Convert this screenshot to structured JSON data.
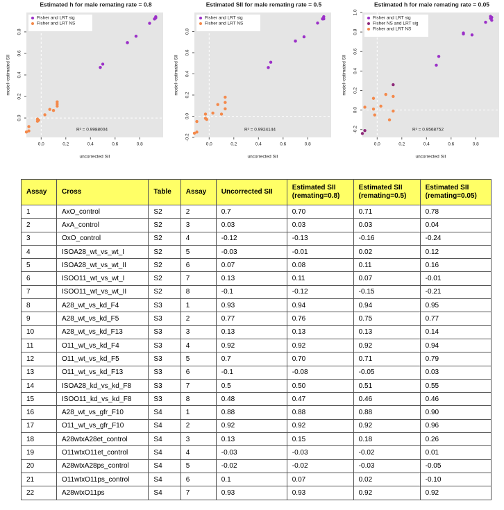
{
  "chart_data": [
    {
      "type": "scatter",
      "title": "Estimated h for male remating rate = 0.8",
      "xlabel": "uncorrected SII",
      "ylabel": "model–estimated SII",
      "annotation": "R² = 0.9988004",
      "xlim": [
        -0.12,
        0.99
      ],
      "ylim": [
        -0.18,
        0.98
      ],
      "xticks": [
        {
          "value": 0,
          "label": "0.0"
        },
        0.2,
        0.4,
        0.6,
        0.8
      ],
      "yticks": [
        {
          "value": 0,
          "label": "0.0"
        },
        0.2,
        0.4,
        0.6,
        0.8
      ],
      "series": [
        {
          "name": "Fisher and LRT sig",
          "color": "#9b30c8",
          "x": [
            0.7,
            0.93,
            0.77,
            0.92,
            0.7,
            0.5,
            0.48,
            0.88,
            0.92,
            0.93
          ],
          "values": [
            0.7,
            0.94,
            0.76,
            0.92,
            0.7,
            0.5,
            0.47,
            0.88,
            0.92,
            0.93
          ]
        },
        {
          "name": "Fisher and LRT NS",
          "color": "#f4894b",
          "x": [
            0.03,
            -0.12,
            -0.03,
            0.07,
            0.13,
            -0.1,
            0.13,
            -0.1,
            0.13,
            -0.03,
            -0.02,
            0.1
          ],
          "values": [
            0.03,
            -0.13,
            -0.01,
            0.08,
            0.11,
            -0.12,
            0.13,
            -0.08,
            0.15,
            -0.03,
            -0.02,
            0.07
          ]
        }
      ]
    },
    {
      "type": "scatter",
      "title": "Estimated SII for male remating rate = 0.5",
      "xlabel": "uncorrected SII",
      "ylabel": "model–estimated SII",
      "annotation": "R² = 0.9924144",
      "xlim": [
        -0.12,
        0.99
      ],
      "ylim": [
        -0.2,
        0.98
      ],
      "xticks": [
        {
          "value": 0,
          "label": "0.0"
        },
        0.2,
        0.4,
        0.6,
        0.8
      ],
      "yticks": [
        -0.2,
        {
          "value": 0,
          "label": "0.0"
        },
        0.2,
        0.4,
        0.6,
        0.8
      ],
      "series": [
        {
          "name": "Fisher and LRT sig",
          "color": "#9b30c8",
          "x": [
            0.7,
            0.93,
            0.77,
            0.92,
            0.7,
            0.5,
            0.48,
            0.88,
            0.92,
            0.93
          ],
          "values": [
            0.71,
            0.94,
            0.75,
            0.92,
            0.71,
            0.51,
            0.46,
            0.88,
            0.92,
            0.92
          ]
        },
        {
          "name": "Fisher and LRT NS",
          "color": "#f4894b",
          "x": [
            0.03,
            -0.12,
            -0.03,
            0.07,
            0.13,
            -0.1,
            0.13,
            -0.1,
            0.13,
            -0.03,
            -0.02,
            0.1
          ],
          "values": [
            0.03,
            -0.16,
            0.02,
            0.11,
            0.07,
            -0.15,
            0.13,
            -0.05,
            0.18,
            -0.02,
            -0.03,
            0.02
          ]
        }
      ]
    },
    {
      "type": "scatter",
      "title": "Estimated h for male remating rate = 0.05",
      "xlabel": "uncorrected SII",
      "ylabel": "model–estimated SII",
      "annotation": "R² = 0.9568752",
      "xlim": [
        -0.12,
        0.99
      ],
      "ylim": [
        -0.28,
        1.0
      ],
      "xticks": [
        {
          "value": 0,
          "label": "0.0"
        },
        0.2,
        0.4,
        0.6,
        0.8
      ],
      "yticks": [
        -0.2,
        {
          "value": 0,
          "label": "0.0"
        },
        0.2,
        0.4,
        0.6,
        0.8,
        {
          "value": 1,
          "label": "1.0"
        }
      ],
      "series": [
        {
          "name": "Fisher and LRT sig",
          "color": "#9b30c8",
          "x": [
            0.7,
            0.93,
            0.77,
            0.92,
            0.7,
            0.5,
            0.48,
            0.88,
            0.92,
            0.93
          ],
          "values": [
            0.78,
            0.95,
            0.77,
            0.94,
            0.79,
            0.55,
            0.46,
            0.9,
            0.96,
            0.92
          ]
        },
        {
          "name": "Fisher NS and LRT sig",
          "color": "#8e2a7a",
          "x": [
            -0.12,
            -0.1,
            0.13
          ],
          "values": [
            -0.24,
            -0.21,
            0.26
          ]
        },
        {
          "name": "Fisher and LRT NS",
          "color": "#f4894b",
          "x": [
            0.03,
            -0.03,
            0.07,
            0.13,
            0.13,
            -0.1,
            -0.03,
            -0.02,
            0.1
          ],
          "values": [
            0.04,
            0.12,
            0.16,
            -0.01,
            0.14,
            0.03,
            0.01,
            -0.05,
            -0.1
          ]
        }
      ]
    }
  ],
  "table": {
    "header": [
      "Assay",
      "Cross",
      "Table",
      "Assay",
      "Uncorrected SII",
      "Estimated SII\n(remating=0.8)",
      "Estimated SII\n(remating=0.5)",
      "Estimated SII\n(remating=0.05)"
    ],
    "rows": [
      [
        "1",
        "AxO_control",
        "S2",
        "2",
        "0.7",
        "0.70",
        "0.71",
        "0.78"
      ],
      [
        "2",
        "AxA_control",
        "S2",
        "3",
        "0.03",
        "0.03",
        "0.03",
        "0.04"
      ],
      [
        "3",
        "OxO_control",
        "S2",
        "4",
        "-0.12",
        "-0.13",
        "-0.16",
        "-0.24"
      ],
      [
        "4",
        "ISOA28_wt_vs_wt_I",
        "S2",
        "5",
        "-0.03",
        "-0.01",
        "0.02",
        "0.12"
      ],
      [
        "5",
        "ISOA28_wt_vs_wt_II",
        "S2",
        "6",
        "0.07",
        "0.08",
        "0.11",
        "0.16"
      ],
      [
        "6",
        "ISOO11_wt_vs_wt_I",
        "S2",
        "7",
        "0.13",
        "0.11",
        "0.07",
        "-0.01"
      ],
      [
        "7",
        "ISOO11_wt_vs_wt_II",
        "S2",
        "8",
        "-0.1",
        "-0.12",
        "-0.15",
        "-0.21"
      ],
      [
        "8",
        "A28_wt_vs_kd_F4",
        "S3",
        "1",
        "0.93",
        "0.94",
        "0.94",
        "0.95"
      ],
      [
        "9",
        "A28_wt_vs_kd_F5",
        "S3",
        "2",
        "0.77",
        "0.76",
        "0.75",
        "0.77"
      ],
      [
        "10",
        "A28_wt_vs_kd_F13",
        "S3",
        "3",
        "0.13",
        "0.13",
        "0.13",
        "0.14"
      ],
      [
        "11",
        "O11_wt_vs_kd_F4",
        "S3",
        "4",
        "0.92",
        "0.92",
        "0.92",
        "0.94"
      ],
      [
        "12",
        "O11_wt_vs_kd_F5",
        "S3",
        "5",
        "0.7",
        "0.70",
        "0.71",
        "0.79"
      ],
      [
        "13",
        "O11_wt_vs_kd_F13",
        "S3",
        "6",
        "-0.1",
        "-0.08",
        "-0.05",
        "0.03"
      ],
      [
        "14",
        "ISOA28_kd_vs_kd_F8",
        "S3",
        "7",
        "0.5",
        "0.50",
        "0.51",
        "0.55"
      ],
      [
        "15",
        "ISOO11_kd_vs_kd_F8",
        "S3",
        "8",
        "0.48",
        "0.47",
        "0.46",
        "0.46"
      ],
      [
        "16",
        "A28_wt_vs_gfr_F10",
        "S4",
        "1",
        "0.88",
        "0.88",
        "0.88",
        "0.90"
      ],
      [
        "17",
        "O11_wt_vs_gfr_F10",
        "S4",
        "2",
        "0.92",
        "0.92",
        "0.92",
        "0.96"
      ],
      [
        "18",
        "A28wtxA28et_control",
        "S4",
        "3",
        "0.13",
        "0.15",
        "0.18",
        "0.26"
      ],
      [
        "19",
        "O11wtxO11et_control",
        "S4",
        "4",
        "-0.03",
        "-0.03",
        "-0.02",
        "0.01"
      ],
      [
        "20",
        "A28wtxA28ps_control",
        "S4",
        "5",
        "-0.02",
        "-0.02",
        "-0.03",
        "-0.05"
      ],
      [
        "21",
        "O11wtxO11ps_control",
        "S4",
        "6",
        "0.1",
        "0.07",
        "0.02",
        "-0.10"
      ],
      [
        "22",
        "A28wtxO11ps",
        "S4",
        "7",
        "0.93",
        "0.93",
        "0.92",
        "0.92"
      ]
    ]
  }
}
